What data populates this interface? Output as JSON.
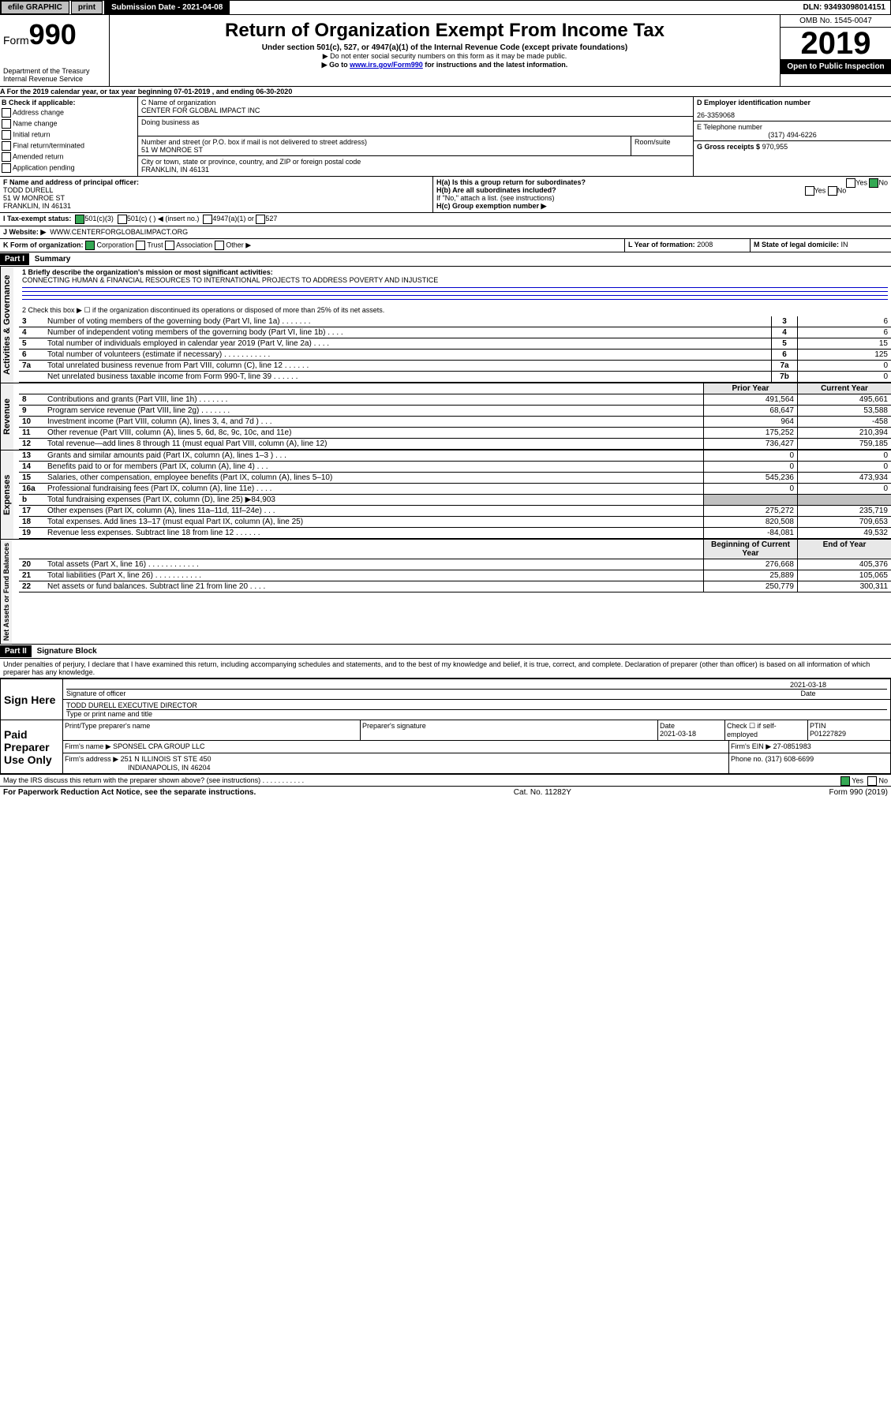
{
  "topbar": {
    "efile": "efile GRAPHIC",
    "print": "print",
    "submission_label": "Submission Date - 2021-04-08",
    "dln": "DLN: 93493098014151"
  },
  "header": {
    "form_prefix": "Form",
    "form_number": "990",
    "dept": "Department of the Treasury",
    "irs": "Internal Revenue Service",
    "title": "Return of Organization Exempt From Income Tax",
    "subtitle": "Under section 501(c), 527, or 4947(a)(1) of the Internal Revenue Code (except private foundations)",
    "note1": "▶ Do not enter social security numbers on this form as it may be made public.",
    "note2_pre": "▶ Go to ",
    "note2_link": "www.irs.gov/Form990",
    "note2_post": " for instructions and the latest information.",
    "omb": "OMB No. 1545-0047",
    "year": "2019",
    "open": "Open to Public Inspection"
  },
  "period": {
    "line_a": "A For the 2019 calendar year, or tax year beginning 07-01-2019    , and ending 06-30-2020"
  },
  "box_b": {
    "label": "B Check if applicable:",
    "opts": [
      "Address change",
      "Name change",
      "Initial return",
      "Final return/terminated",
      "Amended return",
      "Application pending"
    ]
  },
  "box_c": {
    "label": "C Name of organization",
    "name": "CENTER FOR GLOBAL IMPACT INC",
    "dba_label": "Doing business as",
    "addr_label": "Number and street (or P.O. box if mail is not delivered to street address)",
    "room_label": "Room/suite",
    "addr": "51 W MONROE ST",
    "city_label": "City or town, state or province, country, and ZIP or foreign postal code",
    "city": "FRANKLIN, IN  46131"
  },
  "box_d": {
    "label": "D Employer identification number",
    "value": "26-3359068"
  },
  "box_e": {
    "label": "E Telephone number",
    "value": "(317) 494-6226"
  },
  "box_g": {
    "label": "G Gross receipts $",
    "value": "970,955"
  },
  "box_f": {
    "label": "F Name and address of principal officer:",
    "name": "TODD DURELL",
    "addr1": "51 W MONROE ST",
    "addr2": "FRANKLIN, IN  46131"
  },
  "box_h": {
    "ha": "H(a)  Is this a group return for subordinates?",
    "hb": "H(b)  Are all subordinates included?",
    "hb_note": "If \"No,\" attach a list. (see instructions)",
    "hc": "H(c)  Group exemption number ▶",
    "yes": "Yes",
    "no": "No"
  },
  "box_i": {
    "label": "I    Tax-exempt status:",
    "opt1": "501(c)(3)",
    "opt2": "501(c) (   ) ◀ (insert no.)",
    "opt3": "4947(a)(1) or",
    "opt4": "527"
  },
  "box_j": {
    "label": "J    Website: ▶",
    "value": "WWW.CENTERFORGLOBALIMPACT.ORG"
  },
  "box_k": {
    "label": "K Form of organization:",
    "corp": "Corporation",
    "trust": "Trust",
    "assoc": "Association",
    "other": "Other ▶"
  },
  "box_l": {
    "label": "L Year of formation:",
    "value": "2008"
  },
  "box_m": {
    "label": "M State of legal domicile:",
    "value": "IN"
  },
  "part1": {
    "header": "Part I",
    "title": "Summary",
    "q1_label": "1  Briefly describe the organization's mission or most significant activities:",
    "q1_value": "CONNECTING HUMAN & FINANCIAL RESOURCES TO INTERNATIONAL PROJECTS TO ADDRESS POVERTY AND INJUSTICE",
    "q2": "2   Check this box ▶ ☐  if the organization discontinued its operations or disposed of more than 25% of its net assets.",
    "vlabels": {
      "gov": "Activities & Governance",
      "rev": "Revenue",
      "exp": "Expenses",
      "net": "Net Assets or Fund Balances"
    },
    "lines_gov": [
      {
        "n": "3",
        "t": "Number of voting members of the governing body (Part VI, line 1a)  . . . . . . .",
        "b": "3",
        "v": "6"
      },
      {
        "n": "4",
        "t": "Number of independent voting members of the governing body (Part VI, line 1b)  . . . .",
        "b": "4",
        "v": "6"
      },
      {
        "n": "5",
        "t": "Total number of individuals employed in calendar year 2019 (Part V, line 2a)  . . . .",
        "b": "5",
        "v": "15"
      },
      {
        "n": "6",
        "t": "Total number of volunteers (estimate if necessary)  . . . . . . . . . . .",
        "b": "6",
        "v": "125"
      },
      {
        "n": "7a",
        "t": "Total unrelated business revenue from Part VIII, column (C), line 12  . . . . . .",
        "b": "7a",
        "v": "0"
      },
      {
        "n": "",
        "t": "Net unrelated business taxable income from Form 990-T, line 39   . . . . . .",
        "b": "7b",
        "v": "0"
      }
    ],
    "col_headers": {
      "prior": "Prior Year",
      "current": "Current Year",
      "begin": "Beginning of Current Year",
      "end": "End of Year"
    },
    "lines_rev": [
      {
        "n": "8",
        "t": "Contributions and grants (Part VIII, line 1h)  . . . . . . .",
        "p": "491,564",
        "c": "495,661"
      },
      {
        "n": "9",
        "t": "Program service revenue (Part VIII, line 2g)  . . . . . . .",
        "p": "68,647",
        "c": "53,588"
      },
      {
        "n": "10",
        "t": "Investment income (Part VIII, column (A), lines 3, 4, and 7d )  . . .",
        "p": "964",
        "c": "-458"
      },
      {
        "n": "11",
        "t": "Other revenue (Part VIII, column (A), lines 5, 6d, 8c, 9c, 10c, and 11e)",
        "p": "175,252",
        "c": "210,394"
      },
      {
        "n": "12",
        "t": "Total revenue—add lines 8 through 11 (must equal Part VIII, column (A), line 12)",
        "p": "736,427",
        "c": "759,185"
      }
    ],
    "lines_exp": [
      {
        "n": "13",
        "t": "Grants and similar amounts paid (Part IX, column (A), lines 1–3 )  . . .",
        "p": "0",
        "c": "0"
      },
      {
        "n": "14",
        "t": "Benefits paid to or for members (Part IX, column (A), line 4)  . . .",
        "p": "0",
        "c": "0"
      },
      {
        "n": "15",
        "t": "Salaries, other compensation, employee benefits (Part IX, column (A), lines 5–10)",
        "p": "545,236",
        "c": "473,934"
      },
      {
        "n": "16a",
        "t": "Professional fundraising fees (Part IX, column (A), line 11e)  . . . .",
        "p": "0",
        "c": "0"
      },
      {
        "n": "b",
        "t": "Total fundraising expenses (Part IX, column (D), line 25) ▶84,903",
        "p": "",
        "c": "",
        "shaded": true
      },
      {
        "n": "17",
        "t": "Other expenses (Part IX, column (A), lines 11a–11d, 11f–24e)  . . .",
        "p": "275,272",
        "c": "235,719"
      },
      {
        "n": "18",
        "t": "Total expenses. Add lines 13–17 (must equal Part IX, column (A), line 25)",
        "p": "820,508",
        "c": "709,653"
      },
      {
        "n": "19",
        "t": "Revenue less expenses. Subtract line 18 from line 12  . . . . . .",
        "p": "-84,081",
        "c": "49,532"
      }
    ],
    "lines_net": [
      {
        "n": "20",
        "t": "Total assets (Part X, line 16)  . . . . . . . . . . . .",
        "p": "276,668",
        "c": "405,376"
      },
      {
        "n": "21",
        "t": "Total liabilities (Part X, line 26)  . . . . . . . . . . .",
        "p": "25,889",
        "c": "105,065"
      },
      {
        "n": "22",
        "t": "Net assets or fund balances. Subtract line 21 from line 20  . . . .",
        "p": "250,779",
        "c": "300,311"
      }
    ]
  },
  "part2": {
    "header": "Part II",
    "title": "Signature Block",
    "penalty": "Under penalties of perjury, I declare that I have examined this return, including accompanying schedules and statements, and to the best of my knowledge and belief, it is true, correct, and complete. Declaration of preparer (other than officer) is based on all information of which preparer has any knowledge.",
    "sign_here": "Sign Here",
    "sig_officer": "Signature of officer",
    "date": "2021-03-18",
    "officer_name": "TODD DURELL  EXECUTIVE DIRECTOR",
    "type_name": "Type or print name and title",
    "paid": "Paid Preparer Use Only",
    "prep_name_label": "Print/Type preparer's name",
    "prep_sig_label": "Preparer's signature",
    "date_label": "Date",
    "prep_date": "2021-03-18",
    "check_label": "Check ☐ if self-employed",
    "ptin_label": "PTIN",
    "ptin": "P01227829",
    "firm_name_label": "Firm's name     ▶",
    "firm_name": "SPONSEL CPA GROUP LLC",
    "firm_ein_label": "Firm's EIN ▶",
    "firm_ein": "27-0851983",
    "firm_addr_label": "Firm's address ▶",
    "firm_addr": "251 N ILLINOIS ST STE 450",
    "firm_city": "INDIANAPOLIS, IN  46204",
    "phone_label": "Phone no.",
    "phone": "(317) 608-6699",
    "discuss": "May the IRS discuss this return with the preparer shown above? (see instructions)  . . . . . . . . . . .",
    "yes": "Yes",
    "no": "No"
  },
  "footer": {
    "pra": "For Paperwork Reduction Act Notice, see the separate instructions.",
    "cat": "Cat. No. 11282Y",
    "form": "Form 990 (2019)"
  }
}
